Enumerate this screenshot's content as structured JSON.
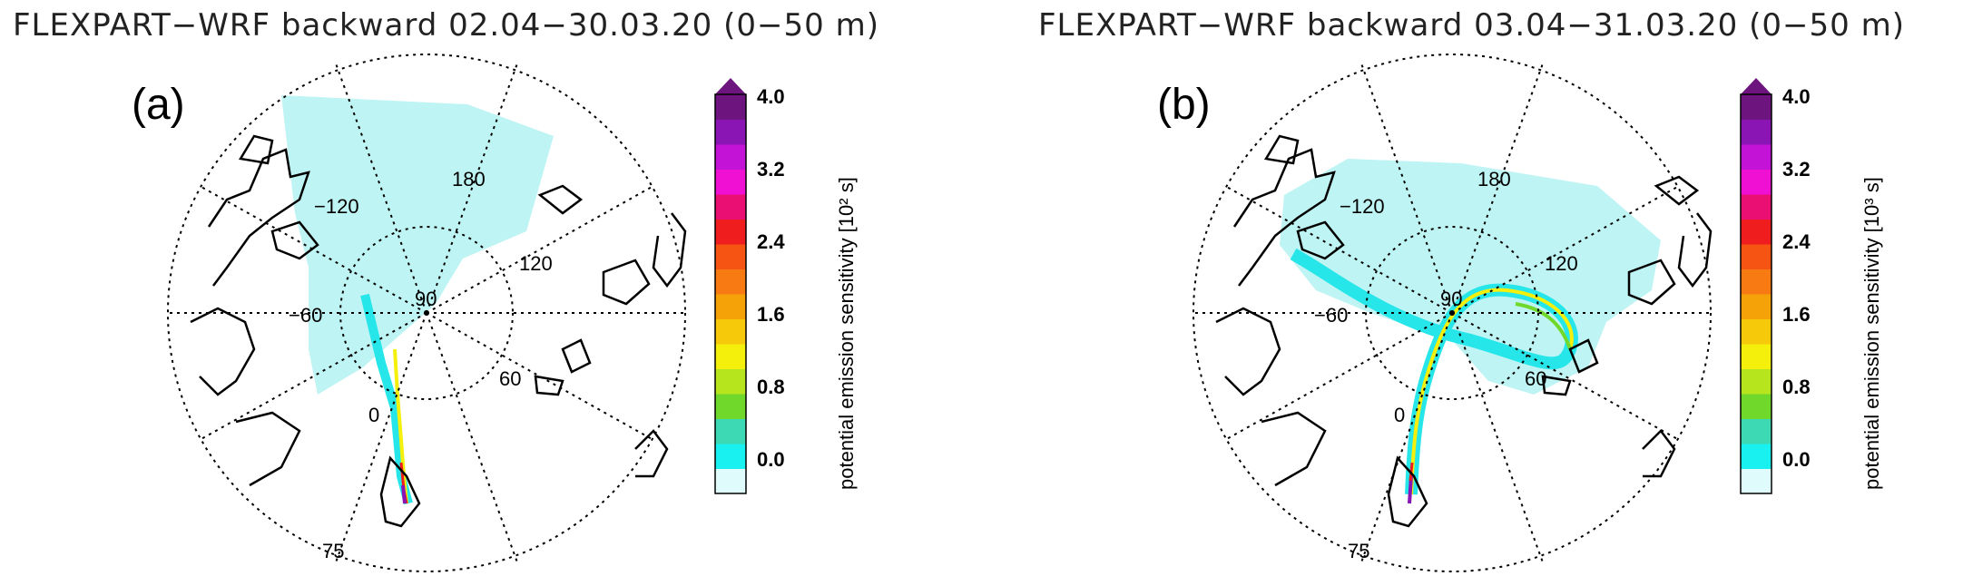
{
  "panels": [
    {
      "id": "a",
      "title": "FLEXPART−WRF backward 02.04−30.03.20 (0−50 m)",
      "label": "(a)",
      "lon_labels": [
        "−120",
        "180",
        "120",
        "60",
        "0",
        "−60"
      ],
      "lat_labels": [
        "90",
        "75"
      ],
      "colorbar": {
        "title": "potential emission sensitivity [10² s]",
        "ticks": [
          "4.0",
          "3.2",
          "2.4",
          "1.6",
          "0.8",
          "0.0"
        ]
      }
    },
    {
      "id": "b",
      "title": "FLEXPART−WRF backward 03.04−31.03.20 (0−50 m)",
      "label": "(b)",
      "lon_labels": [
        "−120",
        "180",
        "120",
        "60",
        "0",
        "−60"
      ],
      "lat_labels": [
        "90",
        "75"
      ],
      "colorbar": {
        "title": "potential emission sensitivity [10³ s]",
        "ticks": [
          "4.0",
          "3.2",
          "2.4",
          "1.6",
          "0.8",
          "0.0"
        ]
      }
    }
  ],
  "colorbar_colors": [
    "#e0fbfb",
    "#19f0f0",
    "#3cd9b4",
    "#6fd82a",
    "#b7e51d",
    "#f4f00b",
    "#f6c90a",
    "#f5a209",
    "#f77b12",
    "#f55412",
    "#ef1d1d",
    "#ea0f73",
    "#f010d4",
    "#c213d6",
    "#8a14b4",
    "#6e147e"
  ],
  "colors": {
    "plume_light": "#bff4f4",
    "plume": "#26e6ea",
    "coast": "#000000",
    "grid": "#000000"
  }
}
